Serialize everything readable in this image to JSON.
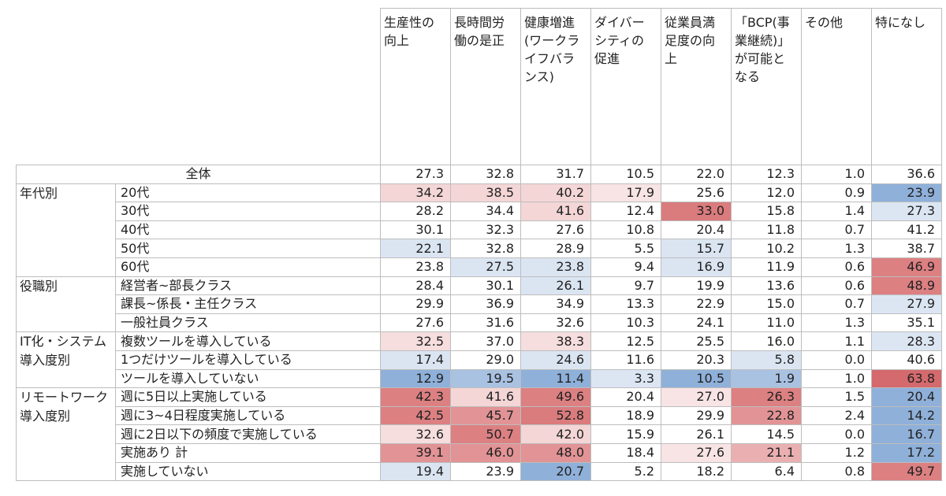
{
  "columns": [
    {
      "lines": [
        "生産性の",
        "向上"
      ]
    },
    {
      "lines": [
        "長時間労",
        "働の是正"
      ]
    },
    {
      "lines": [
        "健康増進",
        "(ワークラ",
        "イフバラ",
        "ンス)"
      ]
    },
    {
      "lines": [
        "ダイバー",
        "シティの",
        "促進"
      ]
    },
    {
      "lines": [
        "従業員満",
        "足度の向",
        "上"
      ]
    },
    {
      "lines": [
        "「BCP(事",
        "業継続)」",
        "が可能と",
        "なる"
      ]
    },
    {
      "lines": [
        "その他"
      ]
    },
    {
      "lines": [
        "特になし"
      ]
    }
  ],
  "overall": {
    "label": "全体",
    "values": [
      "27.3",
      "32.8",
      "31.7",
      "10.5",
      "22.0",
      "12.3",
      "1.0",
      "36.6"
    ]
  },
  "groups": [
    {
      "label_lines": [
        "年代別"
      ],
      "rows": [
        {
          "label": "20代",
          "values": [
            "34.2",
            "38.5",
            "40.2",
            "17.9",
            "25.6",
            "12.0",
            "0.9",
            "23.9"
          ],
          "colors": [
            "#f4d6d6",
            "#f4d6d6",
            "#f4d6d6",
            "#f8e4e4",
            "",
            "",
            "",
            "#8fb0d9"
          ]
        },
        {
          "label": "30代",
          "values": [
            "28.2",
            "34.4",
            "41.6",
            "12.4",
            "33.0",
            "15.8",
            "1.4",
            "27.3"
          ],
          "colors": [
            "",
            "",
            "#f4d6d6",
            "",
            "#da7b7d",
            "",
            "",
            "#dce6f3"
          ]
        },
        {
          "label": "40代",
          "values": [
            "30.1",
            "32.3",
            "27.6",
            "10.8",
            "20.4",
            "11.8",
            "0.7",
            "41.2"
          ],
          "colors": [
            "",
            "",
            "",
            "",
            "",
            "",
            "",
            ""
          ]
        },
        {
          "label": "50代",
          "values": [
            "22.1",
            "32.8",
            "28.9",
            "5.5",
            "15.7",
            "10.2",
            "1.3",
            "38.7"
          ],
          "colors": [
            "#dbe5f2",
            "",
            "",
            "",
            "#dbe5f2",
            "",
            "",
            ""
          ]
        },
        {
          "label": "60代",
          "values": [
            "23.8",
            "27.5",
            "23.8",
            "9.4",
            "16.9",
            "11.9",
            "0.6",
            "46.9"
          ],
          "colors": [
            "",
            "#dbe5f2",
            "#dbe5f2",
            "",
            "#dbe5f2",
            "",
            "",
            "#dc8082"
          ]
        }
      ]
    },
    {
      "label_lines": [
        "役職別"
      ],
      "rows": [
        {
          "label": "経営者~部長クラス",
          "values": [
            "28.4",
            "30.1",
            "26.1",
            "9.7",
            "19.9",
            "13.6",
            "0.6",
            "48.9"
          ],
          "colors": [
            "",
            "",
            "#dbe5f2",
            "",
            "",
            "",
            "",
            "#dc8082"
          ]
        },
        {
          "label": "課長~係長・主任クラス",
          "values": [
            "29.9",
            "36.9",
            "34.9",
            "13.3",
            "22.9",
            "15.0",
            "0.7",
            "27.9"
          ],
          "colors": [
            "",
            "",
            "",
            "",
            "",
            "",
            "",
            "#dce6f3"
          ]
        },
        {
          "label": "一般社員クラス",
          "values": [
            "27.6",
            "31.6",
            "32.6",
            "10.3",
            "24.1",
            "11.0",
            "1.3",
            "35.1"
          ],
          "colors": [
            "",
            "",
            "",
            "",
            "",
            "",
            "",
            ""
          ]
        }
      ]
    },
    {
      "label_lines": [
        "IT化・システム",
        "導入度別"
      ],
      "rows": [
        {
          "label": "複数ツールを導入している",
          "values": [
            "32.5",
            "37.0",
            "38.3",
            "12.5",
            "25.5",
            "16.0",
            "1.1",
            "28.3"
          ],
          "colors": [
            "#f6dede",
            "",
            "#f6dede",
            "",
            "",
            "",
            "",
            "#dce6f3"
          ]
        },
        {
          "label": "1つだけツールを導入している",
          "values": [
            "17.4",
            "29.0",
            "24.6",
            "11.6",
            "20.3",
            "5.8",
            "0.0",
            "40.6"
          ],
          "colors": [
            "#dbe5f2",
            "",
            "#dbe5f2",
            "",
            "",
            "#dbe5f2",
            "",
            ""
          ]
        },
        {
          "label": "ツールを導入していない",
          "values": [
            "12.9",
            "19.5",
            "11.4",
            "3.3",
            "10.5",
            "1.9",
            "1.0",
            "63.8"
          ],
          "colors": [
            "#8fb0d9",
            "#a9c2e2",
            "#8fb0d9",
            "#dce6f3",
            "#8fb0d9",
            "#a9c2e2",
            "",
            "#d46a6d"
          ]
        }
      ]
    },
    {
      "label_lines": [
        "リモートワーク",
        "導入度別"
      ],
      "rows": [
        {
          "label": "週に5日以上実施している",
          "values": [
            "42.3",
            "41.6",
            "49.6",
            "20.4",
            "27.0",
            "26.3",
            "1.5",
            "20.4"
          ],
          "colors": [
            "#dc8082",
            "#f4d6d6",
            "#dc8082",
            "",
            "#f8e4e4",
            "#dc8082",
            "",
            "#8fb0d9"
          ]
        },
        {
          "label": "週に3~4日程度実施している",
          "values": [
            "42.5",
            "45.7",
            "52.8",
            "18.9",
            "29.9",
            "22.8",
            "2.4",
            "14.2"
          ],
          "colors": [
            "#dc8082",
            "#e29395",
            "#da7b7d",
            "",
            "",
            "#e29395",
            "",
            "#8fb0d9"
          ]
        },
        {
          "label": "週に2日以下の頻度で実施している",
          "values": [
            "32.6",
            "50.7",
            "42.0",
            "15.9",
            "26.1",
            "14.5",
            "0.0",
            "16.7"
          ],
          "colors": [
            "#f6dede",
            "#dc8082",
            "#f4d6d6",
            "",
            "",
            "",
            "",
            "#8fb0d9"
          ]
        },
        {
          "label": "実施あり 計",
          "values": [
            "39.1",
            "46.0",
            "48.0",
            "18.4",
            "27.6",
            "21.1",
            "1.2",
            "17.2"
          ],
          "colors": [
            "#e29395",
            "#e29395",
            "#e29395",
            "",
            "#f8e4e4",
            "#eab0b1",
            "",
            "#8fb0d9"
          ]
        },
        {
          "label": "実施していない",
          "values": [
            "19.4",
            "23.9",
            "20.7",
            "5.2",
            "18.2",
            "6.4",
            "0.8",
            "49.7"
          ],
          "colors": [
            "#dbe5f2",
            "",
            "#8fb0d9",
            "",
            "",
            "",
            "",
            "#dc8082"
          ]
        }
      ]
    }
  ]
}
